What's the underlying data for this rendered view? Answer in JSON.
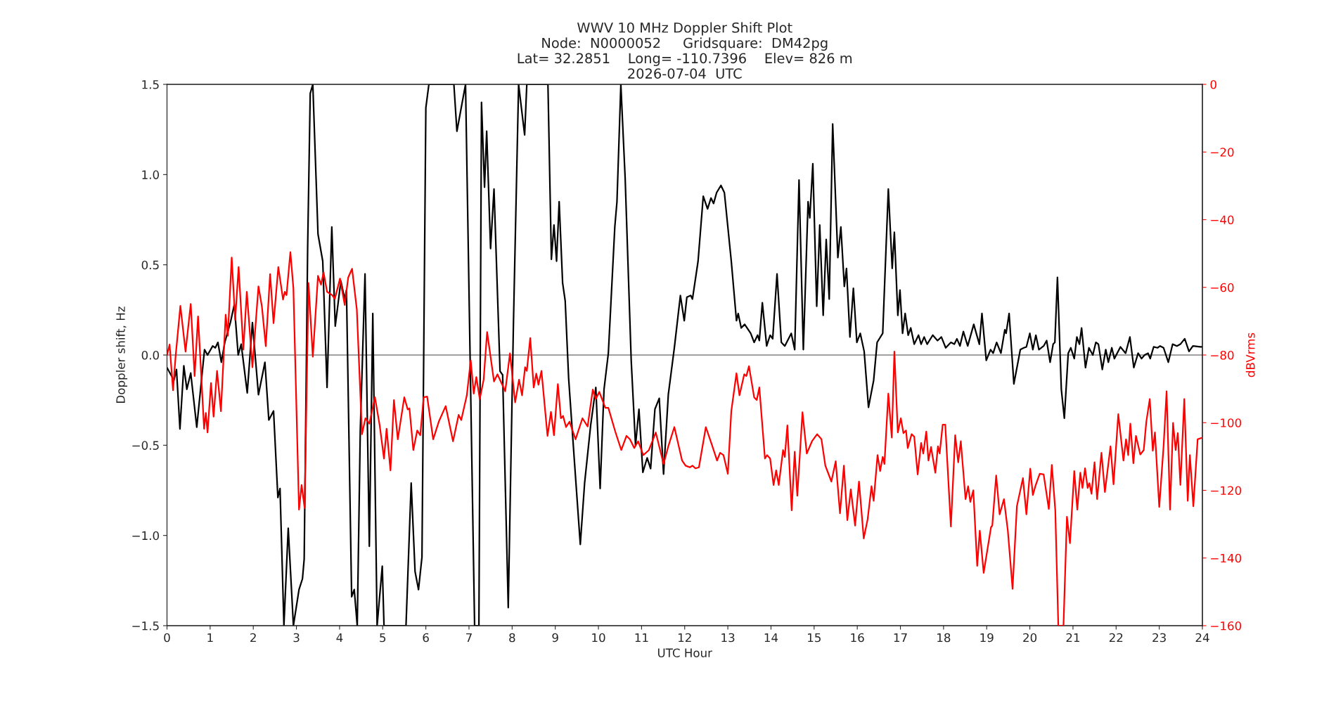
{
  "chart_data": {
    "type": "line",
    "title": "WWV 10 MHz Doppler Shift Plot\nNode:  N0000052     Gridsquare:  DM42pg\nLat= 32.2851    Long= -110.7396    Elev= 826 m\n2026-07-04  UTC",
    "xlabel": "UTC Hour",
    "ylabel": "Doppler shift, Hz",
    "y2label": "dBVrms",
    "xlim": [
      0,
      24
    ],
    "xticks": [
      0,
      1,
      2,
      3,
      4,
      5,
      6,
      7,
      8,
      9,
      10,
      11,
      12,
      13,
      14,
      15,
      16,
      17,
      18,
      19,
      20,
      21,
      22,
      23,
      24
    ],
    "ylim": [
      -1.5,
      1.5
    ],
    "yticks": [
      {
        "value": -1.5,
        "label": "−1.5"
      },
      {
        "value": -1.0,
        "label": "−1.0"
      },
      {
        "value": -0.5,
        "label": "−0.5"
      },
      {
        "value": 0,
        "label": "0.0"
      },
      0.5,
      {
        "value": 1,
        "label": "1.0"
      },
      1.5
    ],
    "y2lim": [
      -160,
      0
    ],
    "y2ticks": [
      {
        "value": -160,
        "label": "−160"
      },
      {
        "value": -140,
        "label": "−140"
      },
      {
        "value": -120,
        "label": "−120"
      },
      {
        "value": -100,
        "label": "−100"
      },
      {
        "value": -80,
        "label": "−80"
      },
      {
        "value": -60,
        "label": "−60"
      },
      {
        "value": -40,
        "label": "−40"
      },
      {
        "value": -20,
        "label": "−20"
      },
      0
    ],
    "grid": false,
    "ref_lines": [
      {
        "axis": "y",
        "value": 0,
        "color": "#808080"
      }
    ],
    "series": [
      {
        "color": "#000000",
        "x": [
          0,
          0.16,
          0.22,
          0.3,
          0.39,
          0.46,
          0.55,
          0.69,
          0.87,
          0.94,
          1.06,
          1.12,
          1.18,
          1.26,
          1.34,
          1.47,
          1.56,
          1.65,
          1.72,
          1.86,
          1.98,
          2.12,
          2.27,
          2.36,
          2.47,
          2.57,
          2.62,
          2.71,
          2.81,
          2.93,
          3.06,
          3.14,
          3.18,
          3.26,
          3.32,
          3.38,
          3.5,
          3.61,
          3.71,
          3.82,
          3.9,
          4.03,
          4.12,
          4.16,
          4.28,
          4.34,
          4.41,
          4.48,
          4.59,
          4.69,
          4.77,
          4.87,
          4.99,
          5.03,
          5.54,
          5.66,
          5.75,
          5.83,
          5.91,
          6.0,
          6.07,
          6.65,
          6.72,
          6.92,
          7.13,
          7.23,
          7.29,
          7.36,
          7.41,
          7.5,
          7.58,
          7.72,
          7.78,
          7.91,
          8.03,
          8.15,
          8.29,
          8.34,
          8.83,
          8.91,
          8.97,
          9.03,
          9.09,
          9.17,
          9.23,
          9.31,
          9.45,
          9.58,
          9.68,
          9.82,
          9.94,
          10.04,
          10.13,
          10.23,
          10.38,
          10.43,
          10.52,
          10.62,
          10.76,
          10.86,
          10.94,
          11.03,
          11.13,
          11.21,
          11.31,
          11.41,
          11.51,
          11.62,
          11.76,
          11.9,
          11.99,
          12.05,
          12.14,
          12.18,
          12.31,
          12.43,
          12.53,
          12.61,
          12.67,
          12.74,
          12.84,
          12.92,
          13.08,
          13.2,
          13.24,
          13.31,
          13.39,
          13.53,
          13.61,
          13.69,
          13.73,
          13.8,
          13.9,
          13.98,
          14.04,
          14.14,
          14.24,
          14.32,
          14.47,
          14.55,
          14.65,
          14.75,
          14.86,
          14.9,
          14.97,
          15.06,
          15.13,
          15.21,
          15.28,
          15.35,
          15.43,
          15.55,
          15.62,
          15.7,
          15.75,
          15.83,
          15.91,
          15.99,
          16.07,
          16.16,
          16.26,
          16.38,
          16.46,
          16.59,
          16.72,
          16.81,
          16.86,
          16.94,
          16.99,
          17.05,
          17.11,
          17.18,
          17.24,
          17.32,
          17.42,
          17.48,
          17.55,
          17.62,
          17.75,
          17.86,
          17.95,
          18.05,
          18.17,
          18.25,
          18.31,
          18.38,
          18.46,
          18.56,
          18.7,
          18.83,
          18.89,
          18.99,
          19.09,
          19.15,
          19.23,
          19.33,
          19.42,
          19.45,
          19.52,
          19.63,
          19.78,
          19.86,
          19.92,
          20.0,
          20.07,
          20.14,
          20.21,
          20.32,
          20.39,
          20.47,
          20.54,
          20.58,
          20.64,
          20.73,
          20.8,
          20.89,
          20.95,
          21.03,
          21.09,
          21.15,
          21.2,
          21.29,
          21.37,
          21.46,
          21.53,
          21.59,
          21.68,
          21.76,
          21.82,
          21.9,
          21.96,
          22.1,
          22.22,
          22.32,
          22.41,
          22.51,
          22.59,
          22.66,
          22.74,
          22.79,
          22.87,
          22.96,
          23.02,
          23.1,
          23.21,
          23.31,
          23.41,
          23.49,
          23.59,
          23.69,
          23.78,
          23.95,
          24
        ],
        "values": [
          -0.07,
          -0.14,
          -0.08,
          -0.41,
          -0.06,
          -0.19,
          -0.1,
          -0.4,
          0.03,
          0.0,
          0.05,
          0.04,
          0.07,
          -0.04,
          0.07,
          0.18,
          0.28,
          0.0,
          0.06,
          -0.21,
          0.18,
          -0.22,
          -0.04,
          -0.36,
          -0.31,
          -0.79,
          -0.74,
          -1.5,
          -0.96,
          -1.5,
          -1.3,
          -1.24,
          -1.13,
          0.59,
          1.45,
          1.5,
          0.67,
          0.52,
          -0.18,
          0.71,
          0.16,
          0.41,
          0.31,
          0.36,
          -1.34,
          -1.3,
          -1.5,
          -0.42,
          0.45,
          -1.06,
          0.23,
          -1.5,
          -1.17,
          -1.5,
          -1.5,
          -0.71,
          -1.2,
          -1.3,
          -1.12,
          1.37,
          1.5,
          1.5,
          1.24,
          1.5,
          -1.5,
          -1.5,
          1.4,
          0.93,
          1.24,
          0.59,
          0.92,
          -0.09,
          -0.11,
          -1.4,
          0.17,
          1.5,
          1.22,
          1.5,
          1.5,
          0.53,
          0.72,
          0.52,
          0.85,
          0.4,
          0.3,
          -0.13,
          -0.61,
          -1.05,
          -0.71,
          -0.39,
          -0.18,
          -0.74,
          -0.19,
          0.01,
          0.71,
          0.85,
          1.5,
          0.98,
          -0.03,
          -0.5,
          -0.3,
          -0.65,
          -0.57,
          -0.63,
          -0.3,
          -0.24,
          -0.66,
          -0.22,
          0.04,
          0.33,
          0.19,
          0.32,
          0.33,
          0.31,
          0.52,
          0.88,
          0.81,
          0.87,
          0.84,
          0.9,
          0.94,
          0.9,
          0.52,
          0.19,
          0.23,
          0.15,
          0.17,
          0.12,
          0.07,
          0.11,
          0.08,
          0.29,
          0.05,
          0.11,
          0.09,
          0.45,
          0.07,
          0.05,
          0.12,
          0.03,
          0.97,
          0.03,
          0.85,
          0.76,
          1.06,
          0.27,
          0.72,
          0.22,
          0.64,
          0.31,
          1.28,
          0.54,
          0.71,
          0.38,
          0.48,
          0.1,
          0.37,
          0.07,
          0.12,
          0.02,
          -0.29,
          -0.14,
          0.07,
          0.12,
          0.92,
          0.48,
          0.68,
          0.22,
          0.36,
          0.12,
          0.23,
          0.11,
          0.15,
          0.06,
          0.11,
          0.06,
          0.1,
          0.06,
          0.11,
          0.08,
          0.1,
          0.04,
          0.07,
          0.06,
          0.09,
          0.05,
          0.13,
          0.05,
          0.17,
          0.06,
          0.23,
          -0.03,
          0.03,
          0.01,
          0.07,
          0.01,
          0.14,
          0.12,
          0.23,
          -0.16,
          0.03,
          0.04,
          0.045,
          0.12,
          0.03,
          0.11,
          0.03,
          0.05,
          0.08,
          -0.04,
          0.06,
          0.07,
          0.43,
          -0.19,
          -0.35,
          0.01,
          0.04,
          -0.02,
          0.1,
          0.06,
          0.15,
          -0.07,
          0.04,
          0.0,
          0.07,
          0.06,
          -0.08,
          0.03,
          -0.04,
          0.04,
          -0.02,
          0.045,
          0.01,
          0.1,
          -0.07,
          0.01,
          -0.02,
          0.0,
          0.01,
          -0.02,
          0.045,
          0.04,
          0.05,
          0.04,
          -0.04,
          0.06,
          0.05,
          0.06,
          0.09,
          0.02,
          0.05,
          0.045,
          0.045
        ]
      },
      {
        "color": "#ff0000",
        "axis": "y2",
        "x": [
          0,
          0.06,
          0.14,
          0.2,
          0.31,
          0.43,
          0.55,
          0.64,
          0.72,
          0.86,
          0.9,
          0.94,
          1.02,
          1.08,
          1.16,
          1.25,
          1.36,
          1.41,
          1.5,
          1.58,
          1.66,
          1.77,
          1.85,
          1.98,
          2.12,
          2.2,
          2.29,
          2.39,
          2.47,
          2.58,
          2.69,
          2.73,
          2.77,
          2.86,
          2.93,
          3.06,
          3.12,
          3.19,
          3.28,
          3.38,
          3.5,
          3.57,
          3.63,
          3.71,
          3.83,
          3.89,
          4.01,
          4.12,
          4.2,
          4.29,
          4.4,
          4.52,
          4.6,
          4.69,
          4.82,
          4.93,
          5.03,
          5.09,
          5.18,
          5.26,
          5.35,
          5.5,
          5.58,
          5.62,
          5.71,
          5.8,
          5.87,
          5.95,
          6.03,
          6.17,
          6.3,
          6.46,
          6.63,
          6.76,
          6.82,
          6.95,
          7.04,
          7.11,
          7.17,
          7.25,
          7.34,
          7.42,
          7.58,
          7.66,
          7.84,
          7.95,
          8.07,
          8.16,
          8.23,
          8.3,
          8.34,
          8.42,
          8.5,
          8.56,
          8.61,
          8.68,
          8.82,
          8.9,
          8.97,
          9.06,
          9.13,
          9.18,
          9.25,
          9.33,
          9.47,
          9.63,
          9.75,
          9.87,
          9.94,
          10.02,
          10.16,
          10.23,
          10.39,
          10.53,
          10.65,
          10.73,
          10.83,
          10.92,
          11.04,
          11.17,
          11.33,
          11.51,
          11.62,
          11.76,
          11.94,
          12.02,
          12.12,
          12.18,
          12.25,
          12.33,
          12.49,
          12.63,
          12.75,
          12.82,
          12.9,
          13.0,
          13.08,
          13.2,
          13.27,
          13.38,
          13.43,
          13.49,
          13.61,
          13.67,
          13.73,
          13.86,
          13.91,
          13.98,
          14.06,
          14.12,
          14.18,
          14.28,
          14.32,
          14.38,
          14.48,
          14.55,
          14.61,
          14.73,
          14.83,
          14.95,
          15.07,
          15.17,
          15.26,
          15.4,
          15.5,
          15.6,
          15.69,
          15.77,
          15.85,
          15.95,
          16.04,
          16.15,
          16.24,
          16.33,
          16.38,
          16.47,
          16.53,
          16.59,
          16.63,
          16.72,
          16.8,
          16.86,
          16.94,
          17.01,
          17.07,
          17.13,
          17.17,
          17.26,
          17.32,
          17.4,
          17.48,
          17.53,
          17.6,
          17.65,
          17.71,
          17.81,
          17.87,
          17.91,
          17.98,
          18.04,
          18.17,
          18.27,
          18.34,
          18.4,
          18.51,
          18.57,
          18.62,
          18.69,
          18.78,
          18.84,
          18.93,
          19.1,
          19.13,
          19.22,
          19.3,
          19.4,
          19.49,
          19.6,
          19.7,
          19.84,
          19.92,
          20.01,
          20.07,
          20.13,
          20.23,
          20.32,
          20.44,
          20.51,
          20.59,
          20.66,
          20.73,
          20.78,
          20.86,
          20.93,
          21.03,
          21.1,
          21.17,
          21.22,
          21.28,
          21.34,
          21.38,
          21.43,
          21.5,
          21.56,
          21.66,
          21.74,
          21.87,
          21.94,
          22.05,
          22.17,
          22.23,
          22.28,
          22.33,
          22.4,
          22.46,
          22.56,
          22.64,
          22.7,
          22.78,
          22.85,
          22.9,
          23.0,
          23.1,
          23.17,
          23.25,
          23.32,
          23.38,
          23.43,
          23.49,
          23.58,
          23.66,
          23.71,
          23.79,
          23.89,
          24
        ],
        "values": [
          -80,
          -76.9,
          -90.4,
          -80.3,
          -65.5,
          -79,
          -64.9,
          -86.2,
          -68.6,
          -101.8,
          -97.1,
          -102.9,
          -88.3,
          -98.2,
          -84.7,
          -96.6,
          -68.1,
          -74.3,
          -51.2,
          -69.6,
          -54,
          -78.4,
          -61.3,
          -83.6,
          -59.7,
          -65.7,
          -77.4,
          -56.1,
          -70.6,
          -54,
          -63.6,
          -61.3,
          -62.3,
          -49.6,
          -60.3,
          -125.7,
          -118.4,
          -125.2,
          -58.7,
          -80.5,
          -56.6,
          -59.2,
          -55.6,
          -61.3,
          -62.3,
          -63.4,
          -57.4,
          -65.2,
          -57.1,
          -54.5,
          -66.5,
          -103.4,
          -98.7,
          -100.3,
          -92.5,
          -100.8,
          -110.6,
          -101.8,
          -114.1,
          -93.3,
          -104.9,
          -92.5,
          -96.1,
          -95.8,
          -108.1,
          -102.3,
          -103.7,
          -92.5,
          -92.3,
          -104.9,
          -99.7,
          -95.1,
          -105.5,
          -97.7,
          -99.2,
          -91.9,
          -81.6,
          -91.4,
          -86.5,
          -93,
          -87.3,
          -73.2,
          -87.8,
          -85.7,
          -90.7,
          -79.5,
          -94,
          -87.3,
          -91.9,
          -83.6,
          -84.7,
          -75,
          -89.6,
          -85.5,
          -88.8,
          -84.7,
          -103.9,
          -96.8,
          -103.7,
          -88.6,
          -98.7,
          -98,
          -101.3,
          -99.7,
          -104.9,
          -98.7,
          -101.1,
          -90.2,
          -93,
          -90.9,
          -95.6,
          -95.6,
          -102.6,
          -108.1,
          -103.9,
          -104.9,
          -107.5,
          -105.5,
          -109.6,
          -108.1,
          -102.9,
          -112.2,
          -107,
          -101.3,
          -111.2,
          -112.7,
          -113.2,
          -112.7,
          -113.5,
          -113.2,
          -101.3,
          -106.5,
          -111.2,
          -108.9,
          -109.6,
          -115.1,
          -96.6,
          -85.4,
          -91.9,
          -85.7,
          -86.2,
          -83.3,
          -92.5,
          -93.3,
          -89.6,
          -110.6,
          -109.6,
          -110.6,
          -118.4,
          -114.1,
          -118.4,
          -108.1,
          -110.1,
          -100.8,
          -125.9,
          -108.6,
          -121.6,
          -96.9,
          -109.1,
          -105.5,
          -103.4,
          -104.9,
          -112.7,
          -117.4,
          -111.4,
          -126.8,
          -112.7,
          -128.8,
          -119.7,
          -130.4,
          -117.4,
          -134.2,
          -128.6,
          -118.8,
          -123.1,
          -109.6,
          -114.3,
          -110.1,
          -112.2,
          -91.4,
          -104.4,
          -79,
          -102.9,
          -98.7,
          -103.1,
          -102.3,
          -107.5,
          -103.4,
          -104.1,
          -115.3,
          -106,
          -109.1,
          -102.6,
          -111.2,
          -107.2,
          -114.8,
          -107,
          -109.1,
          -100.6,
          -100.6,
          -130.7,
          -103.7,
          -111.7,
          -105.5,
          -122.6,
          -118.8,
          -123.4,
          -120,
          -142.3,
          -131.9,
          -144.4,
          -130.9,
          -130.4,
          -115.6,
          -127.1,
          -122.6,
          -131.9,
          -149.1,
          -124.7,
          -116.4,
          -127.1,
          -113.6,
          -121.4,
          -118.7,
          -115.1,
          -115.3,
          -125.5,
          -112.5,
          -125.9,
          -160,
          -160,
          -160,
          -127.8,
          -135.6,
          -114.3,
          -125.7,
          -114.8,
          -119.3,
          -113.5,
          -119.3,
          -117.9,
          -121,
          -111.7,
          -122.6,
          -108.9,
          -120.5,
          -107,
          -118.2,
          -97.5,
          -111.2,
          -104.9,
          -109.6,
          -100.3,
          -112,
          -103.9,
          -109.4,
          -108.1,
          -99.7,
          -93,
          -108.3,
          -102.9,
          -124.9,
          -107,
          -90.7,
          -125.7,
          -100.1,
          -108.1,
          -103.1,
          -118.4,
          -93,
          -123.1,
          -109.6,
          -124.7,
          -104.9,
          -104.4
        ]
      }
    ]
  }
}
